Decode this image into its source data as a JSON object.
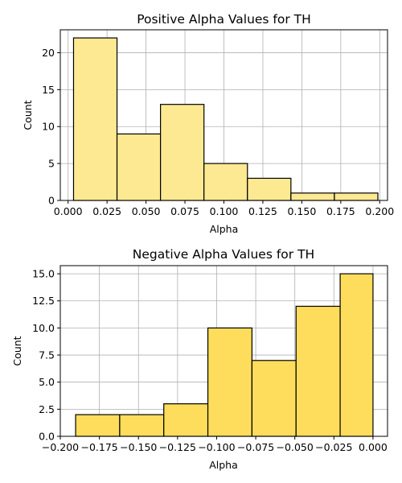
{
  "chart_data": [
    {
      "type": "bar",
      "title": "Positive Alpha Values for TH",
      "xlabel": "Alpha",
      "ylabel": "Count",
      "bar_color": "#fde992",
      "grid": true,
      "xlim": [
        -0.005,
        0.205
      ],
      "ylim": [
        0,
        23.1
      ],
      "xticks": [
        0.0,
        0.025,
        0.05,
        0.075,
        0.1,
        0.125,
        0.15,
        0.175,
        0.2
      ],
      "xtick_labels": [
        "0.000",
        "0.025",
        "0.050",
        "0.075",
        "0.100",
        "0.125",
        "0.150",
        "0.175",
        "0.200"
      ],
      "yticks": [
        0,
        5,
        10,
        15,
        20
      ],
      "ytick_labels": [
        "0",
        "5",
        "10",
        "15",
        "20"
      ],
      "bins": [
        {
          "x0": 0.0035,
          "x1": 0.0314,
          "count": 22
        },
        {
          "x0": 0.0314,
          "x1": 0.0593,
          "count": 9
        },
        {
          "x0": 0.0593,
          "x1": 0.0872,
          "count": 13
        },
        {
          "x0": 0.0872,
          "x1": 0.1151,
          "count": 5
        },
        {
          "x0": 0.1151,
          "x1": 0.143,
          "count": 3
        },
        {
          "x0": 0.143,
          "x1": 0.1709,
          "count": 1
        },
        {
          "x0": 0.1709,
          "x1": 0.1988,
          "count": 1
        }
      ]
    },
    {
      "type": "bar",
      "title": "Negative Alpha Values for TH",
      "xlabel": "Alpha",
      "ylabel": "Count",
      "bar_color": "#fedd5c",
      "grid": true,
      "xlim": [
        -0.2,
        0.0093
      ],
      "ylim": [
        0,
        15.75
      ],
      "xticks": [
        -0.2,
        -0.175,
        -0.15,
        -0.125,
        -0.1,
        -0.075,
        -0.05,
        -0.025,
        0.0
      ],
      "xtick_labels": [
        "−0.200",
        "−0.175",
        "−0.150",
        "−0.125",
        "−0.100",
        "−0.075",
        "−0.050",
        "−0.025",
        "0.000"
      ],
      "yticks": [
        0,
        2.5,
        5,
        7.5,
        10,
        12.5,
        15
      ],
      "ytick_labels": [
        "0.0",
        "2.5",
        "5.0",
        "7.5",
        "10.0",
        "12.5",
        "15.0"
      ],
      "bins": [
        {
          "x0": -0.1902,
          "x1": -0.162,
          "count": 2
        },
        {
          "x0": -0.162,
          "x1": -0.1338,
          "count": 2
        },
        {
          "x0": -0.1338,
          "x1": -0.1056,
          "count": 3
        },
        {
          "x0": -0.1056,
          "x1": -0.0774,
          "count": 10
        },
        {
          "x0": -0.0774,
          "x1": -0.0492,
          "count": 7
        },
        {
          "x0": -0.0492,
          "x1": -0.021,
          "count": 12
        },
        {
          "x0": -0.021,
          "x1": 0.0,
          "count": 15
        }
      ]
    }
  ]
}
